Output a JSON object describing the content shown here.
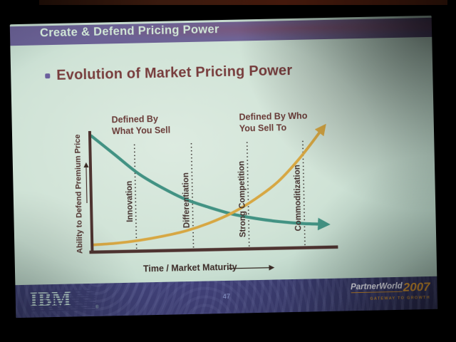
{
  "slide": {
    "header_title": "Create & Defend Pricing Power",
    "title": "Evolution of Market Pricing Power",
    "footer": {
      "brand": "IBM",
      "reg_mark": "®",
      "page_number": "47",
      "event_name": "PartnerWorld",
      "event_year": "2007",
      "event_tagline": "GATEWAY TO GROWTH"
    }
  },
  "chart_data": {
    "type": "line",
    "title": "Evolution of Market Pricing Power",
    "xlabel": "Time / Market Maturity",
    "ylabel": "Ability to Defend Premium Price",
    "x_axis": {
      "min": 0,
      "max": 10
    },
    "y_axis": {
      "min": 0,
      "max": 100
    },
    "grid": false,
    "legend": "none",
    "axis_color": "#4f3330",
    "stage_line_color": "#3b3531",
    "stage_label_color": "#44302d",
    "stages": [
      {
        "label": "Innovation",
        "x": 1.85
      },
      {
        "label": "Differentiation",
        "x": 4.3
      },
      {
        "label": "Strong Competition",
        "x": 6.7
      },
      {
        "label": "Commoditization",
        "x": 9.1
      }
    ],
    "annotations": [
      {
        "text": "Defined By\nWhat You Sell",
        "refers_to": "declining-curve"
      },
      {
        "text": "Defined By Who\nYou Sell To",
        "refers_to": "rising-curve"
      }
    ],
    "series": [
      {
        "name": "Defined By What You Sell",
        "trend": "decreasing",
        "color": "#3f9383",
        "x": [
          0,
          1,
          2,
          3,
          4,
          5,
          6,
          7,
          8,
          9,
          10
        ],
        "y": [
          96,
          80,
          64,
          52,
          42,
          35,
          29,
          25,
          22,
          20,
          19
        ]
      },
      {
        "name": "Defined By Who You Sell To",
        "trend": "increasing",
        "color": "#d9a73e",
        "x": [
          0,
          1,
          2,
          3,
          4,
          5,
          6,
          7,
          8,
          9,
          10
        ],
        "y": [
          6,
          7,
          9,
          12,
          16,
          22,
          30,
          41,
          55,
          75,
          99
        ]
      }
    ]
  }
}
